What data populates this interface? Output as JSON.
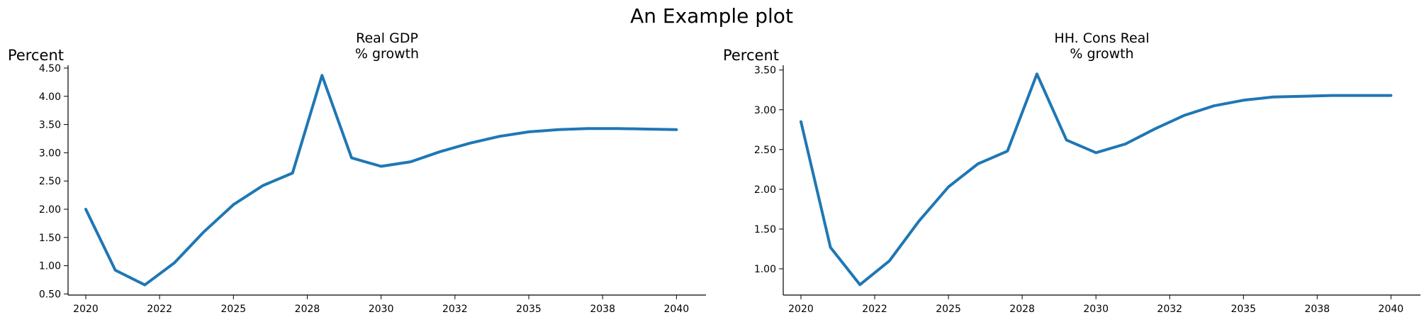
{
  "figure": {
    "suptitle": "An Example plot"
  },
  "chart_data": [
    {
      "type": "line",
      "title_lines": [
        "Real GDP",
        "% growth"
      ],
      "ylabel": "Percent",
      "xlim": [
        2019.4,
        2041.0
      ],
      "ylim": [
        0.48,
        4.55
      ],
      "xticks": [
        2020,
        2022.5,
        2025,
        2027.5,
        2030,
        2032.5,
        2035,
        2037.5,
        2040
      ],
      "xtick_labels": [
        "2020",
        "2022",
        "2025",
        "2028",
        "2030",
        "2032",
        "2035",
        "2038",
        "2040"
      ],
      "yticks": [
        0.5,
        1.0,
        1.5,
        2.0,
        2.5,
        3.0,
        3.5,
        4.0,
        4.5
      ],
      "ytick_labels": [
        "0.50",
        "1.00",
        "1.50",
        "2.00",
        "2.50",
        "3.00",
        "3.50",
        "4.00",
        "4.50"
      ],
      "color": "#1f77b4",
      "grid": false,
      "x": [
        2020,
        2021,
        2022,
        2023,
        2024,
        2025,
        2026,
        2027,
        2028,
        2029,
        2030,
        2031,
        2032,
        2033,
        2034,
        2035,
        2036,
        2037,
        2038,
        2039,
        2040
      ],
      "y": [
        2.0,
        0.92,
        0.66,
        1.05,
        1.6,
        2.08,
        2.42,
        2.64,
        4.37,
        2.91,
        2.76,
        2.84,
        3.02,
        3.17,
        3.29,
        3.37,
        3.41,
        3.43,
        3.43,
        3.42,
        3.41
      ]
    },
    {
      "type": "line",
      "title_lines": [
        "HH. Cons Real",
        "% growth"
      ],
      "ylabel": "Percent",
      "xlim": [
        2019.4,
        2041.0
      ],
      "ylim": [
        0.67,
        3.56
      ],
      "xticks": [
        2020,
        2022.5,
        2025,
        2027.5,
        2030,
        2032.5,
        2035,
        2037.5,
        2040
      ],
      "xtick_labels": [
        "2020",
        "2022",
        "2025",
        "2028",
        "2030",
        "2032",
        "2035",
        "2038",
        "2040"
      ],
      "yticks": [
        1.0,
        1.5,
        2.0,
        2.5,
        3.0,
        3.5
      ],
      "ytick_labels": [
        "1.00",
        "1.50",
        "2.00",
        "2.50",
        "3.00",
        "3.50"
      ],
      "color": "#1f77b4",
      "grid": false,
      "x": [
        2020,
        2021,
        2022,
        2023,
        2024,
        2025,
        2026,
        2027,
        2028,
        2029,
        2030,
        2031,
        2032,
        2033,
        2034,
        2035,
        2036,
        2037,
        2038,
        2039,
        2040
      ],
      "y": [
        2.85,
        1.27,
        0.8,
        1.1,
        1.6,
        2.03,
        2.32,
        2.48,
        3.45,
        2.62,
        2.46,
        2.57,
        2.76,
        2.93,
        3.05,
        3.12,
        3.16,
        3.17,
        3.18,
        3.18,
        3.18
      ]
    }
  ]
}
